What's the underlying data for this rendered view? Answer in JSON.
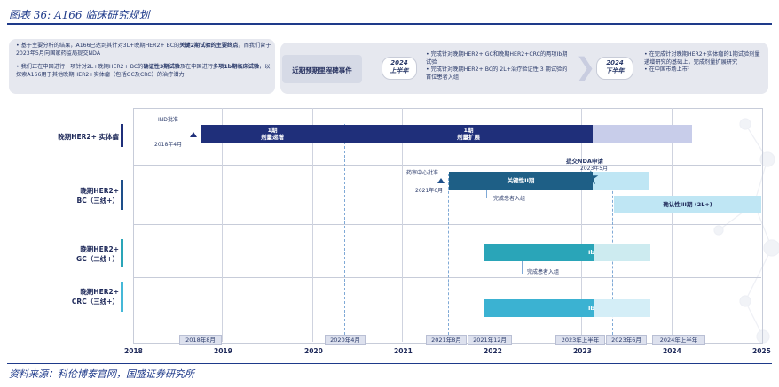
{
  "caption": "图表 36: A166 临床研究规划",
  "source": "资料来源：科伦博泰官网，国盛证券研究所",
  "top_panel": {
    "left_bullets": [
      {
        "pre": "基于主要分析的结果，A166已达到其针对3L+晚期HER2+ BC的",
        "bold": "关键2期试验的主要终点",
        "post": "，而我们曾于2023年5月向国家药监局提交NDA"
      },
      {
        "pre": "我们正在中国进行一项针对2L+晚期HER2+ BC的",
        "bold": "确证性3期试验",
        "mid": "及在中国进行",
        "bold2": "多项1b期临床试验",
        "post": "，以探索A166用于其他晚期HER2+实体瘤（包括GC及CRC）的治疗潜力"
      }
    ],
    "milestone_label": "近期预期里程碑事件",
    "pill1": "2024\n上半年",
    "pill1_year": "2024",
    "pill1_half": "上半年",
    "mid_bullets": [
      "完成针对晚期HER2+ GC和晚期HER2+CRC的两项Ib期试验",
      "完成针对晚期HER2+ BC的 2L+治疗验证性 3 期试验的首位患者入组"
    ],
    "pill2_year": "2024",
    "pill2_half": "下半年",
    "right_bullets": [
      "在完成针对晚期HER2+实体瘤的1期试验剂量递增研究的基础上，完成剂量扩展研究",
      "在中国市场上市¹"
    ]
  },
  "rows": [
    {
      "label1": "晚期HER2+ 实体瘤",
      "label2": "",
      "color": "#1f2f7a"
    },
    {
      "label1": "晚期HER2+",
      "label2": "BC（三线+）",
      "color": "#1e4f8a"
    },
    {
      "label1": "晚期HER2+",
      "label2": "GC（二线+）",
      "color": "#2aa5b8"
    },
    {
      "label1": "晚期HER2+",
      "label2": "CRC（三线+）",
      "color": "#45b8d8"
    }
  ],
  "bars": {
    "phase1_escalation": {
      "l1": "1期",
      "l2": "剂量递增"
    },
    "phase1_expansion": {
      "l1": "1期",
      "l2": "剂量扩展"
    },
    "pivotal": "关键性II期",
    "confirmatory": "确认性III期 (2L+)",
    "gc_ib": "Ib期",
    "crc_ib": "Ib期"
  },
  "notes": {
    "ind": "IND批准",
    "ind_date": "2018年4月",
    "cde": "药审中心批准",
    "cde_date": "2021年6月",
    "nda": "提交NDA申请",
    "nda_date": "2023年5月",
    "enroll1": "完成患者入组",
    "enroll2": "完成患者入组"
  },
  "date_boxes": [
    "2018年8月",
    "2020年4月",
    "2021年8月",
    "2021年12月",
    "2023年上半年",
    "2023年6月",
    "2024年上半年"
  ],
  "years": [
    "2018",
    "2019",
    "2020",
    "2021",
    "2022",
    "2023",
    "2024",
    "2025"
  ]
}
